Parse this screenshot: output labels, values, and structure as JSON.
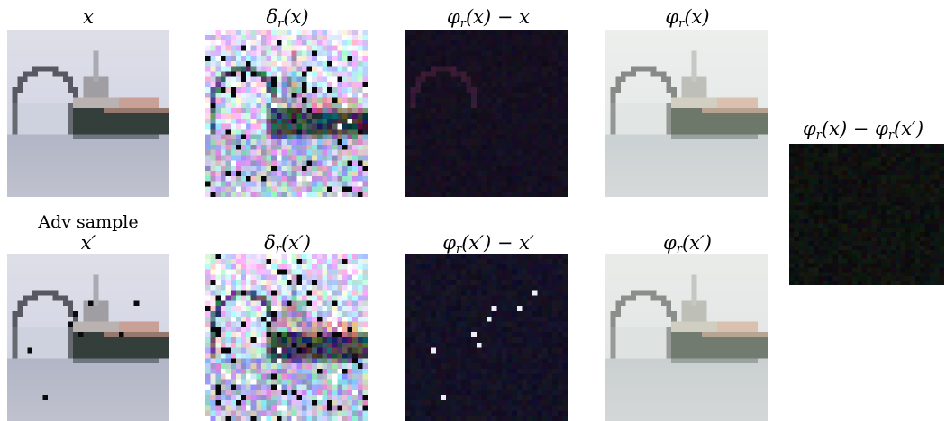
{
  "figure": {
    "top_row": {
      "labels": {
        "x": "x",
        "delta": {
          "sym": "δ",
          "sub": "r",
          "arg": "(x)"
        },
        "diff": {
          "sym": "φ",
          "sub": "r",
          "arg": "(x) − x"
        },
        "phi": {
          "sym": "φ",
          "sub": "r",
          "arg": "(x)"
        }
      }
    },
    "bottom_row": {
      "heading": "Adv sample",
      "labels": {
        "x": "x′",
        "delta": {
          "sym": "δ",
          "sub": "r",
          "arg": "(x′)"
        },
        "diff": {
          "sym": "φ",
          "sub": "r",
          "arg": "(x′) − x′"
        },
        "phi": {
          "sym": "φ",
          "sub": "r",
          "arg": "(x′)"
        }
      }
    },
    "side": {
      "label": {
        "sym": "φ",
        "sub": "r",
        "arg1": "(x) − ",
        "sym2": "φ",
        "sub2": "r",
        "arg2": "(x′)"
      }
    }
  }
}
